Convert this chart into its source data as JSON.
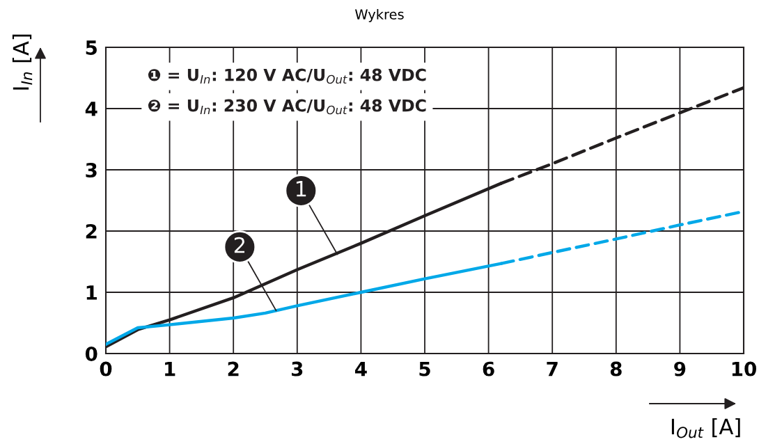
{
  "chart_data": {
    "type": "line",
    "title": "Wykres",
    "xlabel": "I$_{Out}$ [A]",
    "ylabel": "I$_{In}$ [A]",
    "xlim": [
      0,
      10
    ],
    "xticks": [
      0,
      1,
      2,
      3,
      4,
      5,
      6,
      7,
      8,
      9,
      10
    ],
    "ylim": [
      0,
      5
    ],
    "yticks": [
      0,
      1,
      2,
      3,
      4,
      5
    ],
    "grid": true,
    "marker": "none",
    "series": [
      {
        "color": "#231f20",
        "line_style": "solid",
        "x": [
          0,
          0.5,
          1,
          2,
          3,
          4,
          5,
          6.2
        ],
        "values": [
          0.11,
          0.39,
          0.55,
          0.91,
          1.37,
          1.8,
          2.25,
          2.78
        ]
      },
      {
        "color": "#231f20",
        "line_style": "dashed",
        "x": [
          6.2,
          7,
          8,
          9,
          10
        ],
        "values": [
          2.78,
          3.1,
          3.52,
          3.93,
          4.34
        ]
      },
      {
        "color": "#00a8e8",
        "line_style": "solid",
        "x": [
          0,
          0.5,
          1,
          2,
          2.5,
          3,
          4,
          5,
          6.2
        ],
        "values": [
          0.15,
          0.42,
          0.47,
          0.58,
          0.66,
          0.78,
          1.0,
          1.22,
          1.47
        ]
      },
      {
        "color": "#00a8e8",
        "line_style": "dashed",
        "x": [
          6.2,
          7,
          8,
          9,
          10
        ],
        "values": [
          1.47,
          1.65,
          1.87,
          2.1,
          2.32
        ]
      }
    ],
    "annotations": [
      "❶ = U$_{In}$: 120 V AC/U$_{Out}$: 48 VDC",
      "❷ = U$_{In}$: 230 V AC/U$_{Out}$: 48 VDC",
      {
        "text": "1",
        "x": 3.63,
        "y": 1.62
      },
      {
        "text": "2",
        "x": 2.67,
        "y": 0.7
      }
    ]
  }
}
